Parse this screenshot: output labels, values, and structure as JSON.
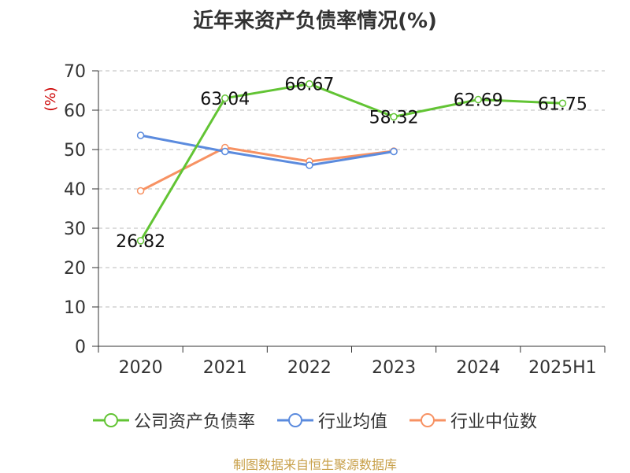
{
  "title": "近年来资产负债率情况(%)",
  "source": "制图数据来自恒生聚源数据库",
  "colors": {
    "company": "#62c434",
    "industry_avg": "#5b8bde",
    "industry_median": "#f79263",
    "axis": "#333333",
    "grid": "#bbbbbb",
    "unit": "#cc0000"
  },
  "chart_data": {
    "type": "line",
    "title": "近年来资产负债率情况(%)",
    "ylabel": "(%)",
    "xlabel": "",
    "ylim": [
      0,
      70
    ],
    "yticks": [
      0,
      10,
      20,
      30,
      40,
      50,
      60,
      70
    ],
    "categories": [
      "2020",
      "2021",
      "2022",
      "2023",
      "2024",
      "2025H1"
    ],
    "grid": true,
    "legend_position": "bottom",
    "series": [
      {
        "name": "公司资产负债率",
        "color": "#62c434",
        "values": [
          26.82,
          63.04,
          66.67,
          58.32,
          62.69,
          61.75
        ],
        "labels": [
          "26.82",
          "63.04",
          "66.67",
          "58.32",
          "62.69",
          "61.75"
        ]
      },
      {
        "name": "行业均值",
        "color": "#5b8bde",
        "values": [
          53.6,
          49.5,
          46.0,
          49.5,
          null,
          null
        ]
      },
      {
        "name": "行业中位数",
        "color": "#f79263",
        "values": [
          39.5,
          50.5,
          47.0,
          49.6,
          null,
          null
        ]
      }
    ]
  }
}
